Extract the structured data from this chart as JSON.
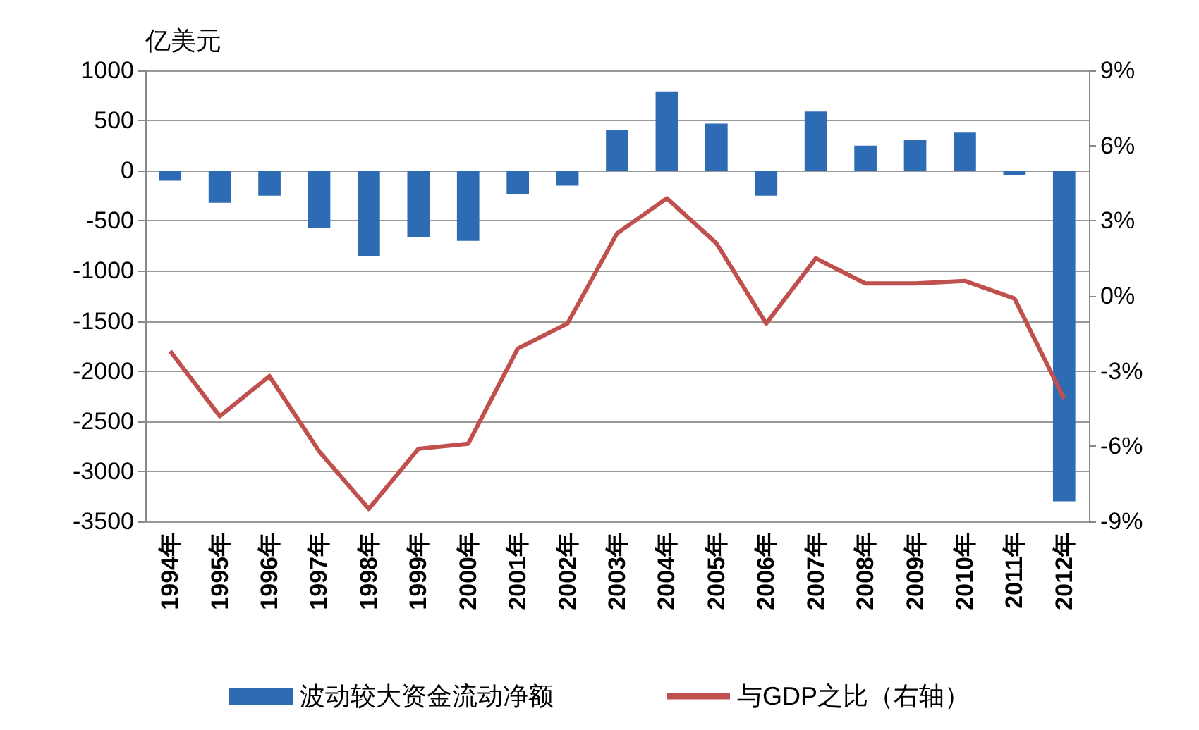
{
  "chart_data": {
    "type": "bar",
    "ylabel": "亿美元",
    "categories": [
      "1994年",
      "1995年",
      "1996年",
      "1997年",
      "1998年",
      "1999年",
      "2000年",
      "2001年",
      "2002年",
      "2003年",
      "2004年",
      "2005年",
      "2006年",
      "2007年",
      "2008年",
      "2009年",
      "2010年",
      "2011年",
      "2012年"
    ],
    "series": [
      {
        "name": "波动较大资金流动净额",
        "color": "#2e6bb5",
        "values": [
          -100,
          -320,
          -250,
          -570,
          -850,
          -660,
          -700,
          -230,
          -150,
          410,
          790,
          470,
          -250,
          590,
          250,
          310,
          380,
          -40,
          -3300
        ]
      },
      {
        "name": "与GDP之比（右轴）",
        "type": "line",
        "axis": "y2",
        "color": "#c0504d",
        "values": [
          -2.2,
          -4.8,
          -3.2,
          -6.2,
          -8.5,
          -6.1,
          -5.9,
          -2.1,
          -1.1,
          2.5,
          3.9,
          2.1,
          -1.1,
          1.5,
          0.5,
          0.5,
          0.6,
          -0.1,
          -4.1
        ]
      }
    ],
    "ylim": [
      -3500,
      1000
    ],
    "yticks": [
      -3500,
      -3000,
      -2500,
      -2000,
      -1500,
      -1000,
      -500,
      0,
      500,
      1000
    ],
    "y2lim": [
      -9,
      9
    ],
    "y2ticks": [
      {
        "value": -9,
        "label": "-9%"
      },
      {
        "value": -6,
        "label": "-6%"
      },
      {
        "value": -3,
        "label": "-3%"
      },
      {
        "value": 0,
        "label": "0%"
      },
      {
        "value": 3,
        "label": "3%"
      },
      {
        "value": 6,
        "label": "6%"
      },
      {
        "value": 9,
        "label": "9%"
      }
    ],
    "grid": "y",
    "legend": "bottom",
    "marker": "none",
    "line_style": "solid"
  }
}
